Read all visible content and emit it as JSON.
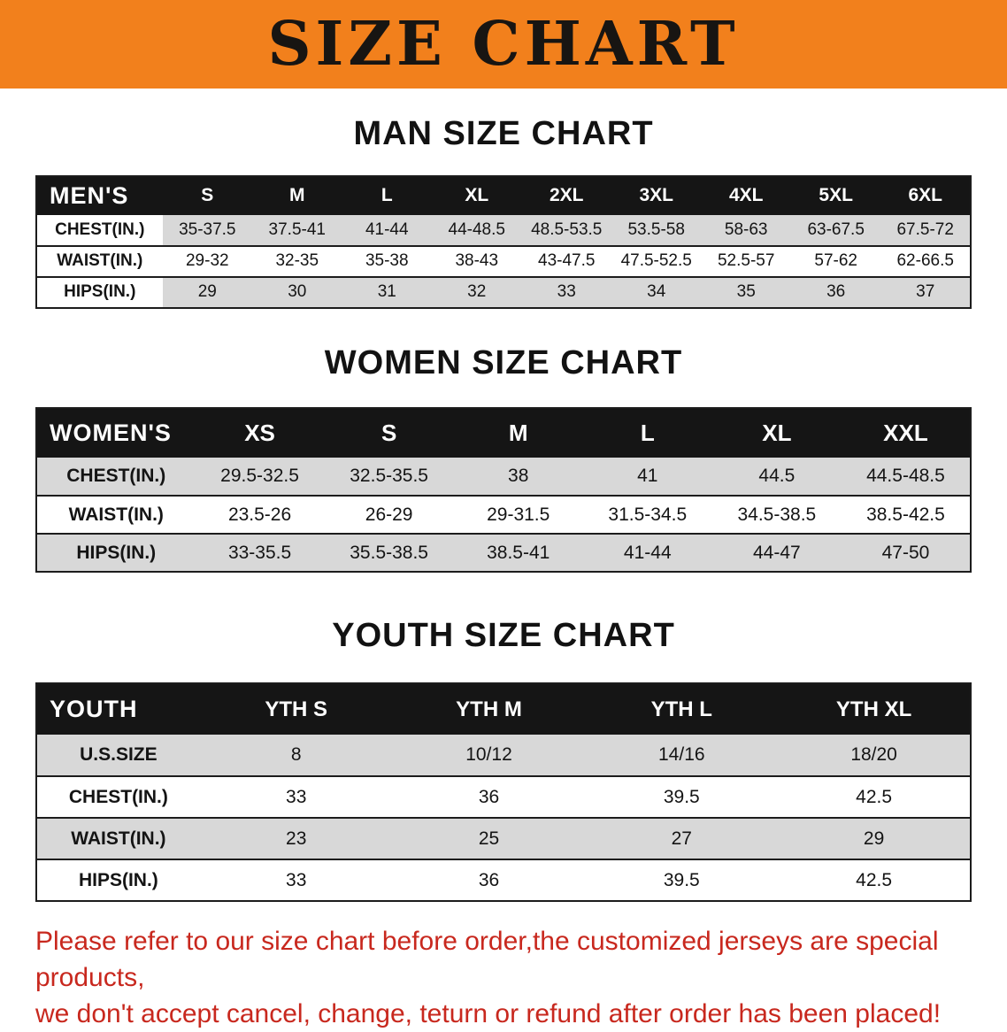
{
  "banner": {
    "title": "SIZE CHART"
  },
  "sections": [
    {
      "id": "men",
      "heading": "MAN SIZE CHART",
      "corner_label": "MEN'S",
      "sizes": [
        "S",
        "M",
        "L",
        "XL",
        "2XL",
        "3XL",
        "4XL",
        "5XL",
        "6XL"
      ],
      "rows": [
        {
          "label": "CHEST(IN.)",
          "values": [
            "35-37.5",
            "37.5-41",
            "41-44",
            "44-48.5",
            "48.5-53.5",
            "53.5-58",
            "58-63",
            "63-67.5",
            "67.5-72"
          ]
        },
        {
          "label": "WAIST(IN.)",
          "values": [
            "29-32",
            "32-35",
            "35-38",
            "38-43",
            "43-47.5",
            "47.5-52.5",
            "52.5-57",
            "57-62",
            "62-66.5"
          ]
        },
        {
          "label": "HIPS(IN.)",
          "values": [
            "29",
            "30",
            "31",
            "32",
            "33",
            "34",
            "35",
            "36",
            "37"
          ]
        }
      ]
    },
    {
      "id": "women",
      "heading": "WOMEN SIZE CHART",
      "corner_label": "WOMEN'S",
      "sizes": [
        "XS",
        "S",
        "M",
        "L",
        "XL",
        "XXL"
      ],
      "rows": [
        {
          "label": "CHEST(IN.)",
          "values": [
            "29.5-32.5",
            "32.5-35.5",
            "38",
            "41",
            "44.5",
            "44.5-48.5"
          ]
        },
        {
          "label": "WAIST(IN.)",
          "values": [
            "23.5-26",
            "26-29",
            "29-31.5",
            "31.5-34.5",
            "34.5-38.5",
            "38.5-42.5"
          ]
        },
        {
          "label": "HIPS(IN.)",
          "values": [
            "33-35.5",
            "35.5-38.5",
            "38.5-41",
            "41-44",
            "44-47",
            "47-50"
          ]
        }
      ]
    },
    {
      "id": "youth",
      "heading": "YOUTH SIZE CHART",
      "corner_label": "YOUTH",
      "sizes": [
        "YTH S",
        "YTH M",
        "YTH L",
        "YTH XL"
      ],
      "rows": [
        {
          "label": "U.S.SIZE",
          "values": [
            "8",
            "10/12",
            "14/16",
            "18/20"
          ]
        },
        {
          "label": "CHEST(IN.)",
          "values": [
            "33",
            "36",
            "39.5",
            "42.5"
          ]
        },
        {
          "label": "WAIST(IN.)",
          "values": [
            "23",
            "25",
            "27",
            "29"
          ]
        },
        {
          "label": "HIPS(IN.)",
          "values": [
            "33",
            "36",
            "39.5",
            "42.5"
          ]
        }
      ]
    }
  ],
  "footer": {
    "line1": "Please refer to our size chart before order,the customized jerseys are special products,",
    "line2": "we don't accept cancel, change, teturn or refund after order has been placed!"
  },
  "colors": {
    "banner_bg": "#f2801c",
    "header_bg": "#151515",
    "stripe": "#d8d8d8",
    "footer_text": "#c8281e"
  }
}
